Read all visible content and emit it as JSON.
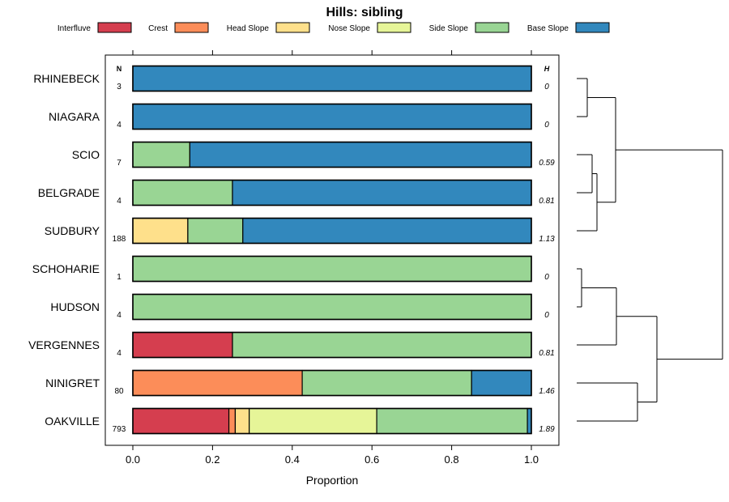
{
  "chart_data": {
    "type": "bar",
    "orientation": "horizontal",
    "stacked": true,
    "title": "Hills: sibling",
    "xlabel": "Proportion",
    "ylabel": "",
    "xlim": [
      0,
      1
    ],
    "xticks": [
      0.0,
      0.2,
      0.4,
      0.6,
      0.8,
      1.0
    ],
    "xtick_labels": [
      "0.0",
      "0.2",
      "0.4",
      "0.6",
      "0.8",
      "1.0"
    ],
    "n_header": "N",
    "h_header": "H",
    "legend_position": "top",
    "series": [
      {
        "name": "Interfluve",
        "color": "#D53E4F"
      },
      {
        "name": "Crest",
        "color": "#FC8D59"
      },
      {
        "name": "Head Slope",
        "color": "#FEE08B"
      },
      {
        "name": "Nose Slope",
        "color": "#E6F598"
      },
      {
        "name": "Side Slope",
        "color": "#99D594"
      },
      {
        "name": "Base Slope",
        "color": "#3288BD"
      }
    ],
    "rows": [
      {
        "label": "RHINEBECK",
        "n": "3",
        "h": "0",
        "values": [
          0,
          0,
          0,
          0,
          0,
          1.0
        ]
      },
      {
        "label": "NIAGARA",
        "n": "4",
        "h": "0",
        "values": [
          0,
          0,
          0,
          0,
          0,
          1.0
        ]
      },
      {
        "label": "SCIO",
        "n": "7",
        "h": "0.59",
        "values": [
          0,
          0,
          0,
          0,
          0.143,
          0.857
        ]
      },
      {
        "label": "BELGRADE",
        "n": "4",
        "h": "0.81",
        "values": [
          0,
          0,
          0,
          0,
          0.25,
          0.75
        ]
      },
      {
        "label": "SUDBURY",
        "n": "188",
        "h": "1.13",
        "values": [
          0,
          0,
          0.138,
          0,
          0.138,
          0.724
        ]
      },
      {
        "label": "SCHOHARIE",
        "n": "1",
        "h": "0",
        "values": [
          0,
          0,
          0,
          0,
          1.0,
          0
        ]
      },
      {
        "label": "HUDSON",
        "n": "4",
        "h": "0",
        "values": [
          0,
          0,
          0,
          0,
          1.0,
          0
        ]
      },
      {
        "label": "VERGENNES",
        "n": "4",
        "h": "0.81",
        "values": [
          0.25,
          0,
          0,
          0,
          0.75,
          0
        ]
      },
      {
        "label": "NINIGRET",
        "n": "80",
        "h": "1.46",
        "values": [
          0,
          0.425,
          0,
          0,
          0.425,
          0.15
        ]
      },
      {
        "label": "OAKVILLE",
        "n": "793",
        "h": "1.89",
        "values": [
          0.241,
          0.016,
          0.035,
          0.32,
          0.378,
          0.01
        ]
      }
    ]
  }
}
